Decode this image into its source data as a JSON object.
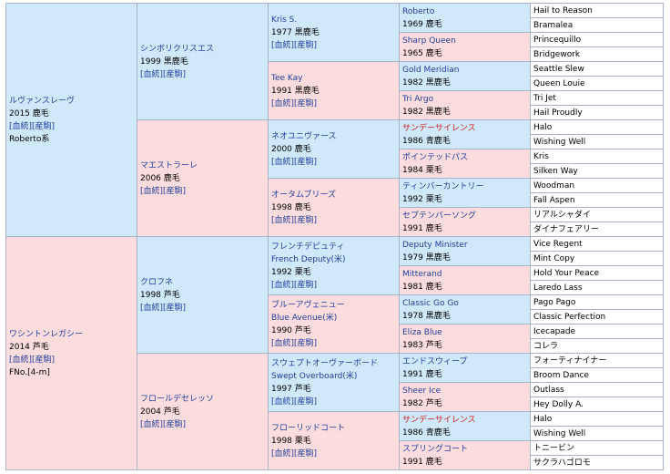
{
  "subject": {
    "name": "ルヴァンスレーヴ",
    "year": "2015",
    "color": "鹿毛",
    "line": "Roberto系"
  },
  "links": {
    "bloodline": "[血統]",
    "progeny": "[産駒]"
  },
  "g1": [
    {
      "name": "ルヴァンスレーヴ",
      "year": "2015",
      "color": "鹿毛",
      "extra": "Roberto系",
      "links": true
    },
    {
      "name": "ワシントンレガシー",
      "year": "2014",
      "color": "芦毛",
      "extra": "FNo.[4-m]",
      "links": true
    }
  ],
  "g2": [
    {
      "name": "シンボリクリスエス",
      "year": "1999",
      "color": "黒鹿毛"
    },
    {
      "name": "マエストラーレ",
      "year": "2006",
      "color": "鹿毛"
    },
    {
      "name": "クロフネ",
      "year": "1998",
      "color": "芦毛"
    },
    {
      "name": "フロールデセレッソ",
      "year": "2004",
      "color": "芦毛"
    }
  ],
  "g3": [
    {
      "name": "Kris S.",
      "year": "1977",
      "color": "黒鹿毛"
    },
    {
      "name": "Tee Kay",
      "year": "1991",
      "color": "黒鹿毛"
    },
    {
      "name": "ネオユニヴァース",
      "year": "2000",
      "color": "鹿毛"
    },
    {
      "name": "オータムブリーズ",
      "year": "1998",
      "color": "鹿毛"
    },
    {
      "name": "フレンチデピュティ",
      "alt": "French Deputy(米)",
      "year": "1992",
      "color": "栗毛"
    },
    {
      "name": "ブルーアヴェニュー",
      "alt": "Blue Avenue(米)",
      "year": "1990",
      "color": "芦毛"
    },
    {
      "name": "スウェプトオーヴァーボード",
      "alt": "Swept Overboard(米)",
      "year": "1997",
      "color": "芦毛"
    },
    {
      "name": "フローリッドコート",
      "year": "1998",
      "color": "栗毛"
    }
  ],
  "g4": [
    {
      "name": "Roberto",
      "year": "1969",
      "color": "鹿毛",
      "red": false
    },
    {
      "name": "Sharp Queen",
      "year": "1965",
      "color": "鹿毛",
      "red": false
    },
    {
      "name": "Gold Meridian",
      "year": "1982",
      "color": "黒鹿毛",
      "red": false
    },
    {
      "name": "Tri Argo",
      "year": "1982",
      "color": "黒鹿毛",
      "red": false
    },
    {
      "name": "サンデーサイレンス",
      "year": "1986",
      "color": "青鹿毛",
      "red": true
    },
    {
      "name": "ポインテッドパス",
      "year": "1984",
      "color": "栗毛",
      "red": false
    },
    {
      "name": "ティンバーカントリー",
      "year": "1992",
      "color": "栗毛",
      "red": false
    },
    {
      "name": "セプテンバーソング",
      "year": "1991",
      "color": "鹿毛",
      "red": false
    },
    {
      "name": "Deputy Minister",
      "year": "1979",
      "color": "黒鹿毛",
      "red": false
    },
    {
      "name": "Mitterand",
      "year": "1981",
      "color": "鹿毛",
      "red": false
    },
    {
      "name": "Classic Go Go",
      "year": "1978",
      "color": "黒鹿毛",
      "red": false
    },
    {
      "name": "Eliza Blue",
      "year": "1983",
      "color": "芦毛",
      "red": false
    },
    {
      "name": "エンドスウィープ",
      "year": "1991",
      "color": "鹿毛",
      "red": false
    },
    {
      "name": "Sheer Ice",
      "year": "1982",
      "color": "芦毛",
      "red": false
    },
    {
      "name": "サンデーサイレンス",
      "year": "1986",
      "color": "青鹿毛",
      "red": true
    },
    {
      "name": "スプリングコート",
      "year": "1991",
      "color": "鹿毛",
      "red": false
    }
  ],
  "g5": [
    {
      "name": "Hail to Reason",
      "red": false
    },
    {
      "name": "Bramalea",
      "red": false
    },
    {
      "name": "Princequillo",
      "red": false
    },
    {
      "name": "Bridgework",
      "red": false
    },
    {
      "name": "Seattle Slew",
      "red": false
    },
    {
      "name": "Queen Louie",
      "red": false
    },
    {
      "name": "Tri Jet",
      "red": false
    },
    {
      "name": "Hail Proudly",
      "red": false
    },
    {
      "name": "Halo",
      "red": false
    },
    {
      "name": "Wishing Well",
      "red": false
    },
    {
      "name": "Kris",
      "red": false
    },
    {
      "name": "Silken Way",
      "red": false
    },
    {
      "name": "Woodman",
      "red": false
    },
    {
      "name": "Fall Aspen",
      "red": false
    },
    {
      "name": "リアルシャダイ",
      "red": false
    },
    {
      "name": "ダイナフェアリー",
      "red": false
    },
    {
      "name": "Vice Regent",
      "red": false
    },
    {
      "name": "Mint Copy",
      "red": false
    },
    {
      "name": "Hold Your Peace",
      "red": false
    },
    {
      "name": "Laredo Lass",
      "red": false
    },
    {
      "name": "Pago Pago",
      "red": false
    },
    {
      "name": "Classic Perfection",
      "red": false
    },
    {
      "name": "Icecapade",
      "red": false
    },
    {
      "name": "コレラ",
      "red": false
    },
    {
      "name": "フォーティナイナー",
      "red": false
    },
    {
      "name": "Broom Dance",
      "red": false
    },
    {
      "name": "Outlass",
      "red": false
    },
    {
      "name": "Hey Dolly A.",
      "red": false
    },
    {
      "name": "Halo",
      "red": false
    },
    {
      "name": "Wishing Well",
      "red": false
    },
    {
      "name": "トニービン",
      "red": false
    },
    {
      "name": "サクラハゴロモ",
      "red": false
    }
  ]
}
